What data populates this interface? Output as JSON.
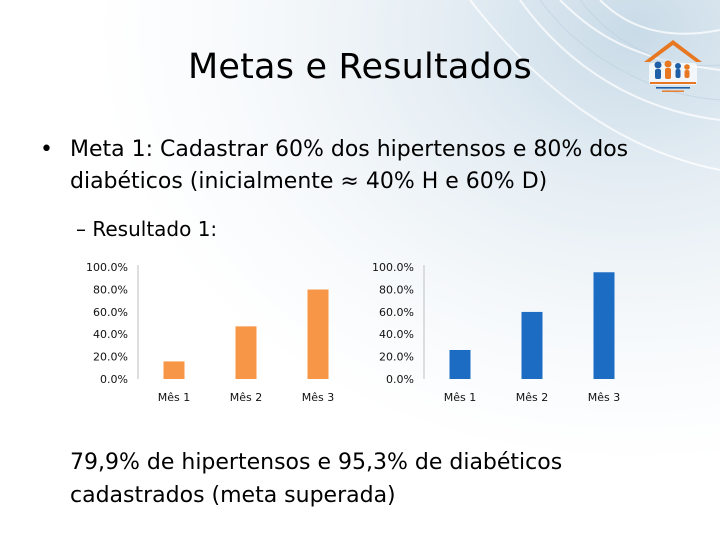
{
  "slide": {
    "title": "Metas e Resultados",
    "bullet_marker": "•",
    "bullet": "Meta 1: Cadastrar 60% dos hipertensos e 80% dos diabéticos (inicialmente ≈ 40% H e 60% D)",
    "sub_bullet": "– Resultado 1:",
    "conclusion": "79,9% de hipertensos e 95,3% de diabéticos cadastrados (meta superada)"
  },
  "logo": {
    "icon": "family-house-logo",
    "colors": [
      "#e87722",
      "#1f5fa8"
    ]
  },
  "chart_data": [
    {
      "type": "bar",
      "categories": [
        "Mês 1",
        "Mês 2",
        "Mês 3"
      ],
      "values": [
        15.7,
        47.0,
        79.9
      ],
      "ylim": [
        0,
        100
      ],
      "yticks": [
        "100.0%",
        "80.0%",
        "60.0%",
        "40.0%",
        "20.0%",
        "0.0%"
      ],
      "color": "#f79646",
      "grid": false,
      "legend": false
    },
    {
      "type": "bar",
      "categories": [
        "Mês 1",
        "Mês 2",
        "Mês 3"
      ],
      "values": [
        25.9,
        59.9,
        95.3
      ],
      "ylim": [
        0,
        100
      ],
      "yticks": [
        "100.0%",
        "80.0%",
        "60.0%",
        "40.0%",
        "20.0%",
        "0.0%"
      ],
      "color": "#1c6cc4",
      "grid": false,
      "legend": false
    }
  ]
}
